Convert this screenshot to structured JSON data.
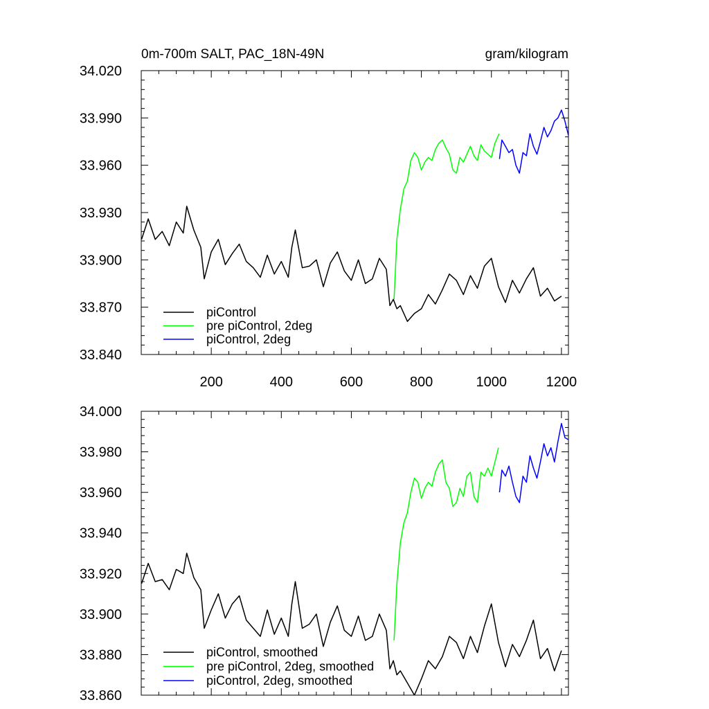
{
  "chart_data": [
    {
      "type": "line",
      "title": "0m-700m SALT, PAC_18N-49N",
      "units": "gram/kilogram",
      "xlim": [
        0,
        1220
      ],
      "ylim": [
        33.84,
        34.02
      ],
      "xticks": [
        200,
        400,
        600,
        800,
        1000,
        1200
      ],
      "xtick_labels": [
        "200",
        "400",
        "600",
        "800",
        "1000",
        "1200"
      ],
      "yticks": [
        33.84,
        33.87,
        33.9,
        33.93,
        33.96,
        33.99,
        34.02
      ],
      "ytick_labels": [
        "33.840",
        "33.870",
        "33.900",
        "33.930",
        "33.960",
        "33.990",
        "34.020"
      ],
      "legend_position": "bottom-left",
      "series": [
        {
          "name": "piControl",
          "color": "#000000",
          "x": [
            1,
            20,
            40,
            60,
            80,
            100,
            120,
            130,
            150,
            170,
            180,
            200,
            220,
            240,
            260,
            280,
            300,
            320,
            340,
            360,
            380,
            400,
            420,
            430,
            440,
            460,
            480,
            500,
            520,
            540,
            560,
            580,
            600,
            620,
            640,
            660,
            680,
            700,
            710,
            720,
            730,
            740,
            760,
            780,
            800,
            820,
            840,
            860,
            880,
            900,
            920,
            940,
            960,
            980,
            1000,
            1020,
            1040,
            1060,
            1080,
            1100,
            1120,
            1140,
            1160,
            1180,
            1200
          ],
          "y": [
            33.913,
            33.926,
            33.913,
            33.918,
            33.909,
            33.924,
            33.917,
            33.934,
            33.919,
            33.908,
            33.888,
            33.905,
            33.913,
            33.897,
            33.904,
            33.91,
            33.899,
            33.895,
            33.889,
            33.903,
            33.891,
            33.899,
            33.889,
            33.908,
            33.919,
            33.895,
            33.896,
            33.9,
            33.883,
            33.898,
            33.905,
            33.893,
            33.887,
            33.9,
            33.885,
            33.888,
            33.901,
            33.894,
            33.871,
            33.875,
            33.869,
            33.871,
            33.861,
            33.866,
            33.869,
            33.878,
            33.872,
            33.881,
            33.891,
            33.887,
            33.878,
            33.89,
            33.882,
            33.896,
            33.901,
            33.883,
            33.873,
            33.887,
            33.879,
            33.888,
            33.895,
            33.877,
            33.882,
            33.874,
            33.877
          ]
        },
        {
          "name": "pre piControl, 2deg",
          "color": "#00ff00",
          "x": [
            722,
            730,
            740,
            750,
            760,
            770,
            780,
            790,
            800,
            810,
            820,
            830,
            840,
            850,
            860,
            870,
            880,
            890,
            900,
            910,
            920,
            930,
            940,
            950,
            960,
            970,
            980,
            990,
            1000,
            1010,
            1022
          ],
          "y": [
            33.875,
            33.913,
            33.932,
            33.945,
            33.95,
            33.963,
            33.968,
            33.965,
            33.957,
            33.962,
            33.965,
            33.963,
            33.97,
            33.974,
            33.976,
            33.971,
            33.967,
            33.957,
            33.955,
            33.965,
            33.962,
            33.967,
            33.972,
            33.966,
            33.963,
            33.973,
            33.969,
            33.967,
            33.965,
            33.974,
            33.98
          ]
        },
        {
          "name": "piControl, 2deg",
          "color": "#0000ff",
          "x": [
            1023,
            1030,
            1040,
            1050,
            1060,
            1070,
            1080,
            1090,
            1100,
            1110,
            1120,
            1130,
            1140,
            1150,
            1160,
            1170,
            1180,
            1190,
            1200,
            1210,
            1220
          ],
          "y": [
            33.964,
            33.976,
            33.972,
            33.968,
            33.97,
            33.96,
            33.955,
            33.968,
            33.966,
            33.98,
            33.972,
            33.967,
            33.975,
            33.984,
            33.978,
            33.982,
            33.988,
            33.99,
            33.995,
            33.988,
            33.979
          ]
        }
      ]
    },
    {
      "type": "line",
      "title": "",
      "units": "",
      "xlim": [
        0,
        1220
      ],
      "ylim": [
        33.86,
        34.0
      ],
      "xticks": [
        200,
        400,
        600,
        800,
        1000,
        1200
      ],
      "xtick_labels": [],
      "yticks": [
        33.86,
        33.88,
        33.9,
        33.92,
        33.94,
        33.96,
        33.98,
        34.0
      ],
      "ytick_labels": [
        "33.860",
        "33.880",
        "33.900",
        "33.920",
        "33.940",
        "33.960",
        "33.980",
        "34.000"
      ],
      "legend_position": "bottom-left",
      "series": [
        {
          "name": "piControl, smoothed",
          "color": "#000000",
          "x": [
            1,
            20,
            40,
            60,
            80,
            100,
            120,
            130,
            150,
            170,
            180,
            200,
            220,
            240,
            260,
            280,
            300,
            320,
            340,
            360,
            380,
            400,
            420,
            430,
            440,
            460,
            480,
            500,
            520,
            540,
            560,
            580,
            600,
            620,
            640,
            660,
            680,
            700,
            710,
            720,
            730,
            740,
            760,
            780,
            800,
            820,
            840,
            860,
            880,
            900,
            920,
            940,
            960,
            980,
            1000,
            1020,
            1040,
            1060,
            1080,
            1100,
            1120,
            1140,
            1160,
            1180,
            1200
          ],
          "y": [
            33.915,
            33.925,
            33.916,
            33.917,
            33.912,
            33.922,
            33.92,
            33.93,
            33.918,
            33.912,
            33.893,
            33.902,
            33.91,
            33.898,
            33.905,
            33.909,
            33.897,
            33.893,
            33.889,
            33.902,
            33.89,
            33.898,
            33.889,
            33.905,
            33.916,
            33.893,
            33.895,
            33.9,
            33.884,
            33.896,
            33.904,
            33.892,
            33.889,
            33.899,
            33.887,
            33.889,
            33.9,
            33.892,
            33.873,
            33.877,
            33.87,
            33.872,
            33.866,
            33.86,
            33.868,
            33.877,
            33.873,
            33.879,
            33.889,
            33.886,
            33.878,
            33.889,
            33.881,
            33.894,
            33.905,
            33.886,
            33.874,
            33.885,
            33.879,
            33.887,
            33.897,
            33.878,
            33.883,
            33.872,
            33.882
          ]
        },
        {
          "name": "pre piControl, 2deg, smoothed",
          "color": "#00ff00",
          "x": [
            722,
            730,
            740,
            750,
            760,
            770,
            780,
            790,
            800,
            810,
            820,
            830,
            840,
            850,
            860,
            870,
            880,
            890,
            900,
            910,
            920,
            930,
            940,
            950,
            960,
            970,
            980,
            990,
            1000,
            1010,
            1020
          ],
          "y": [
            33.887,
            33.915,
            33.935,
            33.945,
            33.95,
            33.96,
            33.967,
            33.965,
            33.957,
            33.962,
            33.965,
            33.963,
            33.97,
            33.974,
            33.976,
            33.965,
            33.962,
            33.953,
            33.955,
            33.962,
            33.958,
            33.968,
            33.97,
            33.958,
            33.955,
            33.97,
            33.968,
            33.972,
            33.968,
            33.975,
            33.982
          ]
        },
        {
          "name": "piControl, 2deg, smoothed",
          "color": "#0000ff",
          "x": [
            1023,
            1030,
            1040,
            1050,
            1060,
            1070,
            1080,
            1090,
            1100,
            1110,
            1120,
            1130,
            1140,
            1150,
            1160,
            1170,
            1180,
            1190,
            1200,
            1210,
            1220
          ],
          "y": [
            33.96,
            33.971,
            33.968,
            33.973,
            33.965,
            33.958,
            33.955,
            33.968,
            33.965,
            33.978,
            33.972,
            33.967,
            33.975,
            33.984,
            33.978,
            33.982,
            33.975,
            33.985,
            33.994,
            33.987,
            33.986
          ]
        }
      ]
    }
  ]
}
